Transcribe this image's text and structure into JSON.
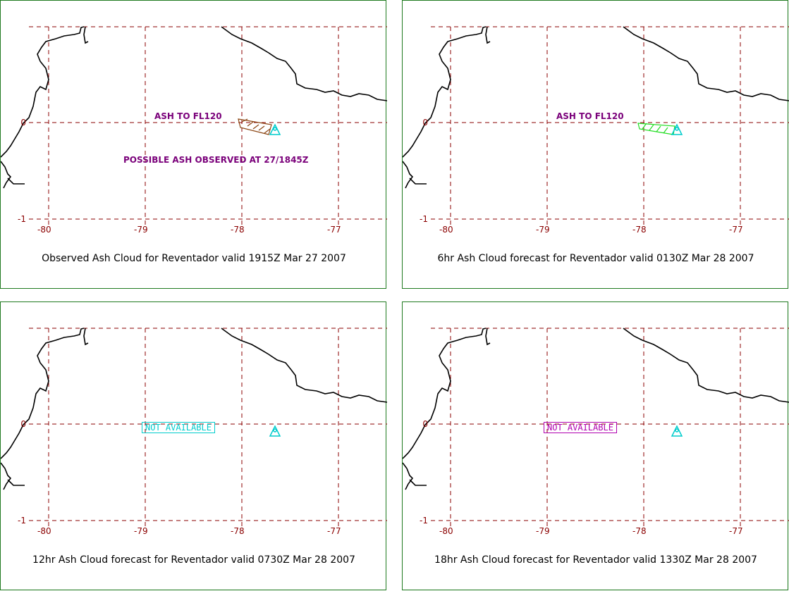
{
  "axes": {
    "x_ticks": [
      "-80",
      "-79",
      "-78",
      "-77"
    ],
    "y_ticks": [
      "0",
      "-1"
    ]
  },
  "panels": [
    {
      "caption": "Observed Ash Cloud for Reventador valid 1915Z Mar 27 2007",
      "ash_label": "ASH TO FL120",
      "note": "POSSIBLE ASH OBSERVED AT 27/1845Z",
      "ash_color": "#8b4513"
    },
    {
      "caption": "6hr Ash Cloud forecast for Reventador valid 0130Z Mar 28 2007",
      "ash_label": "ASH TO FL120",
      "ash_color": "#22dd22"
    },
    {
      "caption": "12hr Ash Cloud forecast for Reventador valid 0730Z Mar 28 2007",
      "status": "NOT AVAILABLE",
      "status_color": "#00cccc"
    },
    {
      "caption": "18hr Ash Cloud forecast for Reventador valid 1330Z Mar 28 2007",
      "status": "NOT AVAILABLE",
      "status_color": "#b000b0"
    }
  ],
  "colors": {
    "grid": "#8b0000",
    "border": "#1f7a1f",
    "volcano": "#00cccc",
    "label": "#7a007a"
  },
  "icons": {
    "volcano": "triangle-volcano-icon"
  }
}
